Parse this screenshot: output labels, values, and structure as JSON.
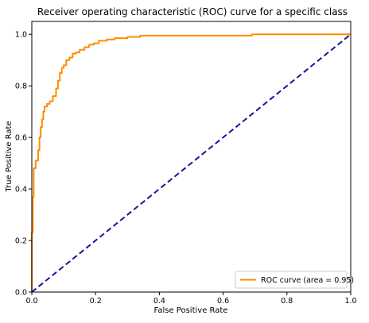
{
  "chart_data": {
    "type": "line",
    "title": "Receiver operating characteristic (ROC) curve for a specific class",
    "xlabel": "False Positive Rate",
    "ylabel": "True Positive Rate",
    "xlim": [
      0.0,
      1.0
    ],
    "ylim": [
      0.0,
      1.05
    ],
    "x_ticks": [
      "0.0",
      "0.2",
      "0.4",
      "0.6",
      "0.8",
      "1.0"
    ],
    "y_ticks": [
      "0.0",
      "0.2",
      "0.4",
      "0.6",
      "0.8",
      "1.0"
    ],
    "grid": false,
    "legend_position": "lower-right",
    "series": [
      {
        "name": "ROC curve (area = 0.95)",
        "color": "#ff8c00",
        "style": "solid",
        "x": [
          0.0,
          0.0,
          0.003,
          0.003,
          0.006,
          0.006,
          0.012,
          0.012,
          0.02,
          0.02,
          0.024,
          0.024,
          0.028,
          0.028,
          0.032,
          0.032,
          0.036,
          0.036,
          0.04,
          0.04,
          0.048,
          0.048,
          0.056,
          0.056,
          0.066,
          0.066,
          0.076,
          0.076,
          0.082,
          0.082,
          0.088,
          0.088,
          0.094,
          0.094,
          0.1,
          0.1,
          0.108,
          0.108,
          0.118,
          0.118,
          0.128,
          0.128,
          0.138,
          0.138,
          0.15,
          0.15,
          0.165,
          0.165,
          0.18,
          0.18,
          0.195,
          0.195,
          0.21,
          0.21,
          0.235,
          0.235,
          0.26,
          0.26,
          0.3,
          0.3,
          0.34,
          0.34,
          0.69,
          0.69,
          1.0
        ],
        "y": [
          0.0,
          0.23,
          0.23,
          0.37,
          0.37,
          0.48,
          0.48,
          0.51,
          0.51,
          0.55,
          0.55,
          0.6,
          0.6,
          0.64,
          0.64,
          0.67,
          0.67,
          0.7,
          0.7,
          0.72,
          0.72,
          0.73,
          0.73,
          0.74,
          0.74,
          0.76,
          0.76,
          0.79,
          0.79,
          0.82,
          0.82,
          0.85,
          0.85,
          0.87,
          0.87,
          0.88,
          0.88,
          0.9,
          0.9,
          0.91,
          0.91,
          0.925,
          0.925,
          0.93,
          0.93,
          0.94,
          0.94,
          0.95,
          0.95,
          0.96,
          0.96,
          0.965,
          0.965,
          0.975,
          0.975,
          0.98,
          0.98,
          0.985,
          0.985,
          0.99,
          0.99,
          0.995,
          0.995,
          1.0,
          1.0
        ]
      },
      {
        "color": "#1f0f9e",
        "style": "dashed",
        "x": [
          0.0,
          1.0
        ],
        "y": [
          0.0,
          1.0
        ]
      }
    ],
    "legend_entries": [
      "ROC curve (area = 0.95)"
    ]
  }
}
